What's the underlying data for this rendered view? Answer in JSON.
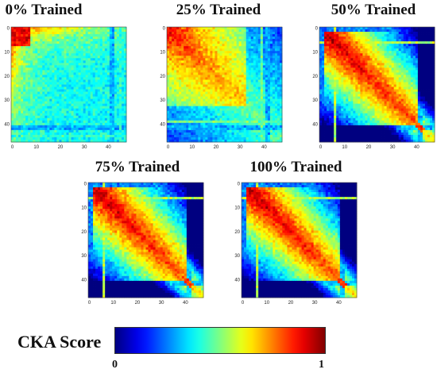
{
  "chart_data": [
    {
      "type": "heatmap",
      "title": "0% Trained",
      "xticks": [
        0,
        10,
        20,
        30,
        40
      ],
      "yticks": [
        0,
        10,
        20,
        30,
        40
      ],
      "n": 48,
      "profile": "untrained"
    },
    {
      "type": "heatmap",
      "title": "25% Trained",
      "xticks": [
        0,
        10,
        20,
        30,
        40
      ],
      "yticks": [
        0,
        10,
        20,
        30,
        40
      ],
      "n": 48,
      "profile": "early"
    },
    {
      "type": "heatmap",
      "title": "50% Trained",
      "xticks": [
        0,
        10,
        20,
        30,
        40
      ],
      "yticks": [
        0,
        10,
        20,
        30,
        40
      ],
      "n": 48,
      "profile": "diagonal"
    },
    {
      "type": "heatmap",
      "title": "75% Trained",
      "xticks": [
        0,
        10,
        20,
        30,
        40
      ],
      "yticks": [
        0,
        10,
        20,
        30,
        40
      ],
      "n": 48,
      "profile": "diagonal"
    },
    {
      "type": "heatmap",
      "title": "100% Trained",
      "xticks": [
        0,
        10,
        20,
        30,
        40
      ],
      "yticks": [
        0,
        10,
        20,
        30,
        40
      ],
      "n": 48,
      "profile": "diagonal"
    }
  ],
  "colorbar": {
    "label": "CKA Score",
    "min": "0",
    "max": "1",
    "colormap": "jet"
  }
}
